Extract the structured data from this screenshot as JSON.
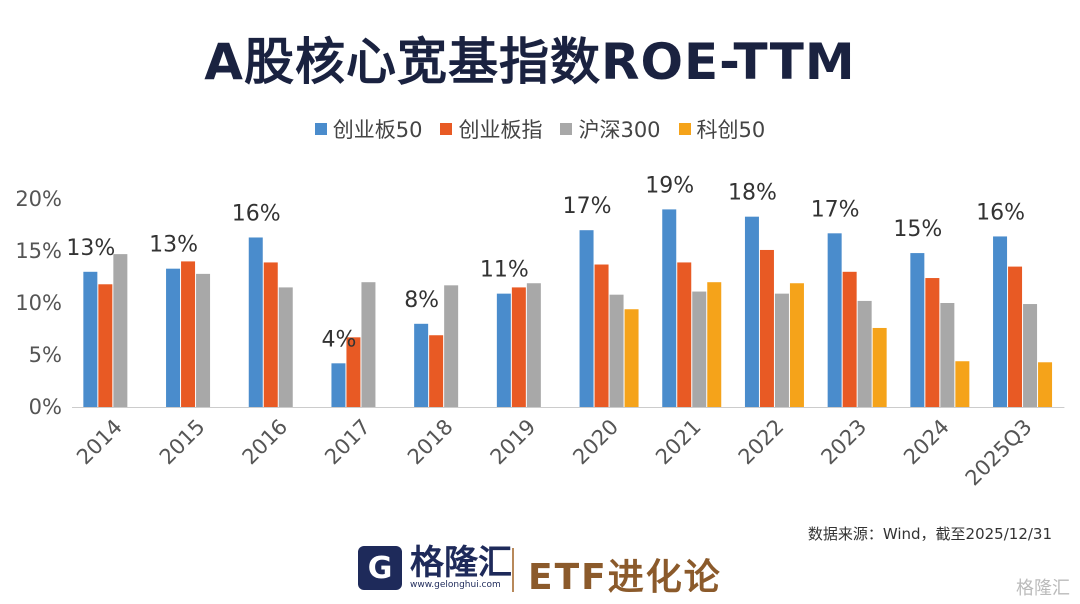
{
  "title": "A股核心宽基指数ROE-TTM",
  "source_note": "数据来源：Wind，截至2025/12/31",
  "brand": {
    "mark": "G",
    "name": "格隆汇",
    "url": "www.gelonghui.com",
    "tagline": "ETF进化论",
    "watermark": "格隆汇"
  },
  "chart_data": {
    "type": "bar",
    "title": "A股核心宽基指数ROE-TTM",
    "categories": [
      "2014",
      "2015",
      "2016",
      "2017",
      "2018",
      "2019",
      "2020",
      "2021",
      "2022",
      "2023",
      "2024",
      "2025Q3"
    ],
    "series": [
      {
        "name": "创业板50",
        "color": "#4a8ccc",
        "values": [
          13.0,
          13.3,
          16.3,
          4.2,
          8.0,
          10.9,
          17.0,
          19.0,
          18.3,
          16.7,
          14.8,
          16.4
        ]
      },
      {
        "name": "创业板指",
        "color": "#e85a24",
        "values": [
          11.8,
          14.0,
          13.9,
          6.7,
          6.9,
          11.5,
          13.7,
          13.9,
          15.1,
          13.0,
          12.4,
          13.5
        ]
      },
      {
        "name": "沪深300",
        "color": "#a8a8a8",
        "values": [
          14.7,
          12.8,
          11.5,
          12.0,
          11.7,
          11.9,
          10.8,
          11.1,
          10.9,
          10.2,
          10.0,
          9.9
        ]
      },
      {
        "name": "科创50",
        "color": "#f5a31a",
        "values": [
          null,
          null,
          null,
          null,
          null,
          null,
          9.4,
          12.0,
          11.9,
          7.6,
          4.4,
          4.3
        ]
      }
    ],
    "data_labels": [
      "13%",
      "13%",
      "16%",
      "4%",
      "8%",
      "11%",
      "17%",
      "19%",
      "18%",
      "17%",
      "15%",
      "16%"
    ],
    "y_ticks": [
      "0%",
      "5%",
      "10%",
      "15%",
      "20%"
    ],
    "ylim": [
      0,
      20
    ],
    "grid": false,
    "legend": "top-center"
  }
}
